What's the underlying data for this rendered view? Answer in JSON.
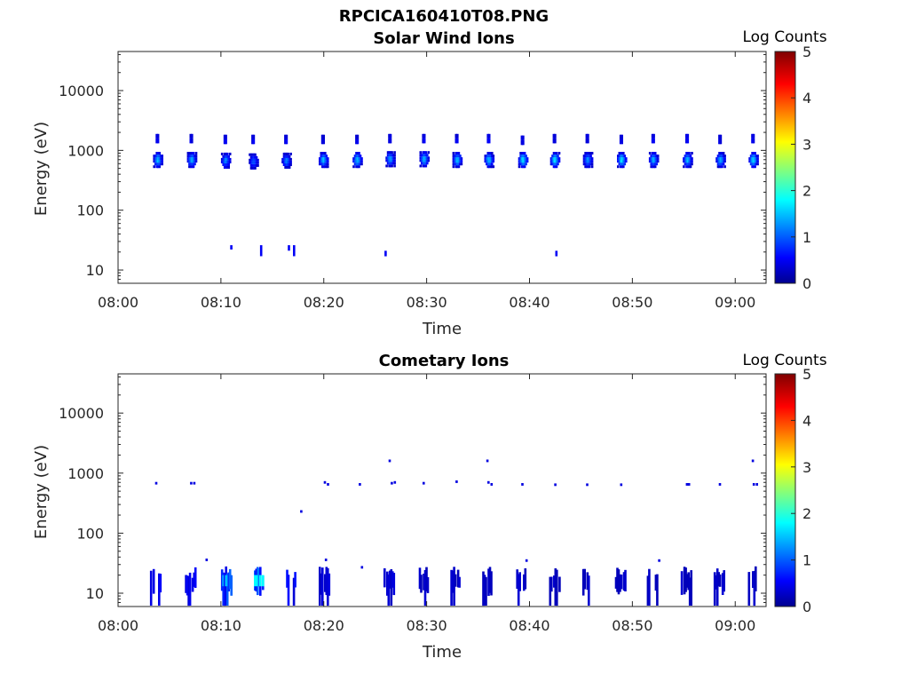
{
  "figure_title": "RPCICA160410T08.PNG",
  "chart_data": [
    {
      "type": "heatmap",
      "title": "Solar Wind Ions",
      "xlabel": "Time",
      "ylabel": "Energy (eV)",
      "x_ticks": [
        "08:00",
        "08:10",
        "08:20",
        "08:30",
        "08:40",
        "08:50",
        "09:00"
      ],
      "x_range_minutes": [
        0,
        63
      ],
      "y_scale": "log",
      "y_ticks": [
        10,
        100,
        1000,
        10000
      ],
      "y_tick_labels": [
        "10",
        "100",
        "1000",
        "10000"
      ],
      "y_range": [
        6,
        45000
      ],
      "colorbar": {
        "label": "Log Counts",
        "min": 0,
        "max": 5,
        "ticks": [
          "0",
          "1",
          "2",
          "3",
          "4",
          "5"
        ],
        "colormap": "jet"
      },
      "bursts": [
        {
          "t": 3.8,
          "e": 700,
          "peak": 1.6,
          "hi": 1600
        },
        {
          "t": 7.1,
          "e": 700,
          "peak": 1.5,
          "hi": 1600
        },
        {
          "t": 10.4,
          "e": 680,
          "peak": 1.3,
          "hi": 1550
        },
        {
          "t": 13.1,
          "e": 660,
          "peak": 1.0,
          "hi": 1550
        },
        {
          "t": 16.3,
          "e": 680,
          "peak": 1.2,
          "hi": 1550
        },
        {
          "t": 19.9,
          "e": 700,
          "peak": 1.6,
          "hi": 1550
        },
        {
          "t": 23.2,
          "e": 700,
          "peak": 1.6,
          "hi": 1550
        },
        {
          "t": 26.4,
          "e": 720,
          "peak": 1.4,
          "hi": 1600
        },
        {
          "t": 29.7,
          "e": 720,
          "peak": 1.5,
          "hi": 1600
        },
        {
          "t": 32.9,
          "e": 700,
          "peak": 1.6,
          "hi": 1600
        },
        {
          "t": 36.0,
          "e": 700,
          "peak": 1.6,
          "hi": 1600
        },
        {
          "t": 39.3,
          "e": 700,
          "peak": 1.8,
          "hi": 1500
        },
        {
          "t": 42.4,
          "e": 700,
          "peak": 1.8,
          "hi": 1600
        },
        {
          "t": 45.6,
          "e": 700,
          "peak": 1.4,
          "hi": 1600
        },
        {
          "t": 48.9,
          "e": 700,
          "peak": 1.8,
          "hi": 1550
        },
        {
          "t": 52.0,
          "e": 700,
          "peak": 1.5,
          "hi": 1600
        },
        {
          "t": 55.3,
          "e": 700,
          "peak": 1.6,
          "hi": 1600
        },
        {
          "t": 58.5,
          "e": 700,
          "peak": 1.5,
          "hi": 1550
        },
        {
          "t": 61.7,
          "e": 700,
          "peak": 1.8,
          "hi": 1600
        }
      ],
      "low_dots": [
        {
          "t": 10.9,
          "e1": 22,
          "e2": 26,
          "v": 0.5
        },
        {
          "t": 13.8,
          "e1": 17,
          "e2": 26,
          "v": 0.5
        },
        {
          "t": 16.5,
          "e1": 21,
          "e2": 26,
          "v": 0.5
        },
        {
          "t": 17.0,
          "e1": 17,
          "e2": 26,
          "v": 0.5
        },
        {
          "t": 25.9,
          "e1": 17,
          "e2": 21,
          "v": 0.5
        },
        {
          "t": 42.5,
          "e1": 17,
          "e2": 21,
          "v": 0.5
        }
      ]
    },
    {
      "type": "heatmap",
      "title": "Cometary Ions",
      "xlabel": "Time",
      "ylabel": "Energy (eV)",
      "x_ticks": [
        "08:00",
        "08:10",
        "08:20",
        "08:30",
        "08:40",
        "08:50",
        "09:00"
      ],
      "x_range_minutes": [
        0,
        63
      ],
      "y_scale": "log",
      "y_ticks": [
        10,
        100,
        1000,
        10000
      ],
      "y_tick_labels": [
        "10",
        "100",
        "1000",
        "10000"
      ],
      "y_range": [
        6,
        45000
      ],
      "colorbar": {
        "label": "Log Counts",
        "min": 0,
        "max": 5,
        "ticks": [
          "0",
          "1",
          "2",
          "3",
          "4",
          "5"
        ],
        "colormap": "jet"
      },
      "low_clusters": [
        {
          "t": 3.6,
          "peak": 0.9
        },
        {
          "t": 7.0,
          "peak": 0.9
        },
        {
          "t": 10.5,
          "peak": 1.5
        },
        {
          "t": 13.7,
          "peak": 1.8
        },
        {
          "t": 16.7,
          "peak": 1.0
        },
        {
          "t": 20.0,
          "peak": 0.6
        },
        {
          "t": 26.3,
          "peak": 0.6
        },
        {
          "t": 29.6,
          "peak": 0.5
        },
        {
          "t": 32.8,
          "peak": 0.5
        },
        {
          "t": 35.9,
          "peak": 0.5
        },
        {
          "t": 39.2,
          "peak": 0.5
        },
        {
          "t": 42.4,
          "peak": 0.5
        },
        {
          "t": 45.5,
          "peak": 0.5
        },
        {
          "t": 48.8,
          "peak": 0.5
        },
        {
          "t": 51.9,
          "peak": 0.5
        },
        {
          "t": 55.2,
          "peak": 0.5
        },
        {
          "t": 58.4,
          "peak": 0.5
        },
        {
          "t": 61.6,
          "peak": 0.5
        }
      ],
      "sparse_points": [
        {
          "t": 3.6,
          "e": 680
        },
        {
          "t": 7.0,
          "e": 680
        },
        {
          "t": 7.3,
          "e": 680
        },
        {
          "t": 20.0,
          "e": 700
        },
        {
          "t": 20.3,
          "e": 650
        },
        {
          "t": 23.4,
          "e": 650
        },
        {
          "t": 26.3,
          "e": 1600
        },
        {
          "t": 26.5,
          "e": 680
        },
        {
          "t": 26.8,
          "e": 700
        },
        {
          "t": 29.6,
          "e": 680
        },
        {
          "t": 32.8,
          "e": 720
        },
        {
          "t": 35.8,
          "e": 1600
        },
        {
          "t": 35.9,
          "e": 700
        },
        {
          "t": 36.2,
          "e": 650
        },
        {
          "t": 39.2,
          "e": 650
        },
        {
          "t": 42.4,
          "e": 640
        },
        {
          "t": 45.5,
          "e": 640
        },
        {
          "t": 48.8,
          "e": 640
        },
        {
          "t": 55.2,
          "e": 650
        },
        {
          "t": 55.4,
          "e": 650
        },
        {
          "t": 58.4,
          "e": 650
        },
        {
          "t": 61.6,
          "e": 1600
        },
        {
          "t": 61.7,
          "e": 650
        },
        {
          "t": 62.0,
          "e": 650
        },
        {
          "t": 17.7,
          "e": 230
        },
        {
          "t": 8.5,
          "e": 36
        },
        {
          "t": 20.1,
          "e": 36
        },
        {
          "t": 23.6,
          "e": 27
        },
        {
          "t": 39.6,
          "e": 35
        },
        {
          "t": 52.5,
          "e": 35
        }
      ]
    }
  ]
}
